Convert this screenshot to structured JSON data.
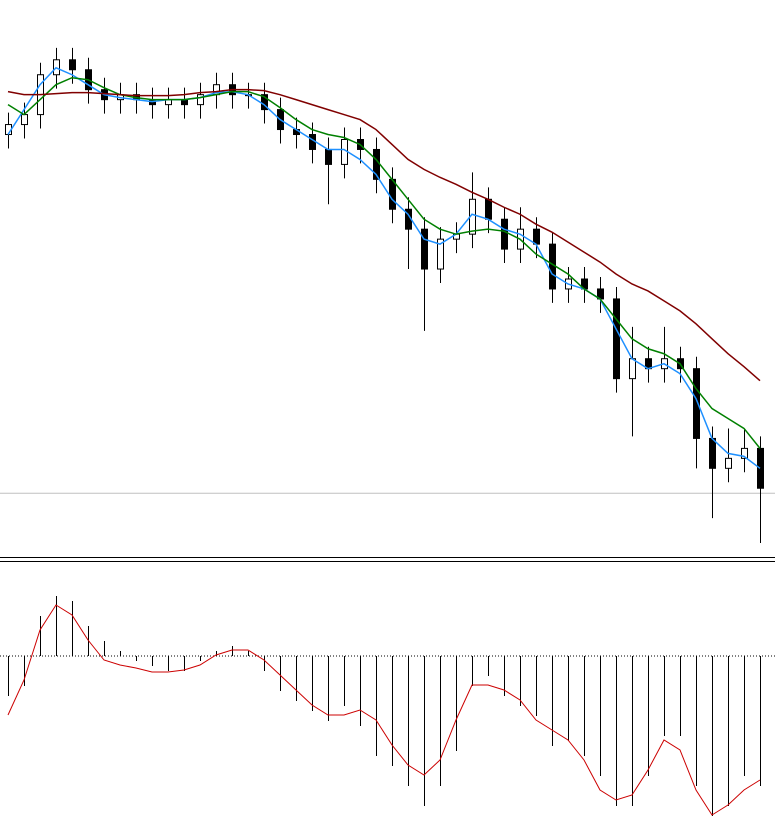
{
  "chart_data": [
    {
      "type": "candlestick",
      "open": [
        425,
        435,
        445,
        485,
        500,
        490,
        470,
        460,
        465,
        460,
        455,
        460,
        455,
        465,
        475,
        465,
        465,
        450,
        430,
        425,
        410,
        395,
        420,
        410,
        380,
        350,
        330,
        290,
        320,
        325,
        360,
        340,
        310,
        330,
        315,
        270,
        280,
        270,
        260,
        180,
        200,
        190,
        200,
        190,
        120,
        90,
        100,
        110
      ],
      "high": [
        447,
        457,
        497,
        512,
        512,
        502,
        482,
        477,
        477,
        472,
        472,
        472,
        477,
        487,
        487,
        477,
        477,
        462,
        442,
        437,
        422,
        432,
        432,
        422,
        392,
        362,
        342,
        332,
        337,
        387,
        372,
        352,
        352,
        342,
        327,
        292,
        292,
        282,
        272,
        232,
        212,
        232,
        212,
        202,
        132,
        130,
        130,
        122
      ],
      "low": [
        411,
        421,
        431,
        471,
        476,
        456,
        446,
        446,
        446,
        441,
        441,
        441,
        441,
        451,
        451,
        451,
        436,
        416,
        411,
        396,
        355,
        381,
        396,
        366,
        336,
        290,
        228,
        276,
        306,
        311,
        326,
        296,
        296,
        301,
        256,
        256,
        256,
        246,
        166,
        122,
        176,
        176,
        176,
        90,
        40,
        76,
        86,
        15
      ],
      "close": [
        435,
        445,
        485,
        500,
        490,
        470,
        460,
        465,
        460,
        455,
        460,
        455,
        465,
        475,
        465,
        465,
        450,
        430,
        425,
        410,
        395,
        420,
        410,
        380,
        350,
        330,
        290,
        320,
        325,
        360,
        340,
        310,
        330,
        315,
        270,
        280,
        270,
        260,
        180,
        200,
        190,
        200,
        190,
        120,
        90,
        100,
        110,
        70
      ],
      "up_color": "#ffffff",
      "down_color": "#000000",
      "overlays": [
        {
          "color": "#1e90ff",
          "values": [
            425,
            450,
            475,
            492,
            485,
            475,
            465,
            462,
            460,
            458,
            460,
            460,
            462,
            467,
            468,
            465,
            455,
            440,
            430,
            420,
            410,
            410,
            400,
            385,
            360,
            345,
            320,
            315,
            325,
            345,
            340,
            330,
            325,
            315,
            285,
            275,
            270,
            260,
            230,
            200,
            190,
            195,
            185,
            160,
            120,
            105,
            102,
            90
          ]
        },
        {
          "color": "#008000",
          "values": [
            455,
            445,
            460,
            475,
            482,
            480,
            472,
            465,
            462,
            460,
            460,
            460,
            462,
            465,
            468,
            468,
            463,
            452,
            440,
            430,
            425,
            422,
            415,
            400,
            380,
            360,
            340,
            330,
            325,
            328,
            330,
            328,
            320,
            305,
            295,
            285,
            270,
            260,
            240,
            220,
            210,
            205,
            195,
            170,
            150,
            140,
            130,
            110
          ]
        },
        {
          "color": "#800000",
          "values": [
            468,
            465,
            465,
            466,
            467,
            467,
            466,
            465,
            464,
            464,
            464,
            465,
            467,
            468,
            470,
            470,
            469,
            465,
            460,
            455,
            450,
            445,
            440,
            430,
            415,
            400,
            390,
            382,
            375,
            367,
            360,
            352,
            345,
            335,
            327,
            317,
            307,
            297,
            285,
            275,
            268,
            258,
            248,
            235,
            220,
            205,
            192,
            178
          ]
        }
      ],
      "hline": 65,
      "hline_color": "#c0c0c0",
      "ylim": [
        0,
        560
      ]
    },
    {
      "type": "macd",
      "histogram": {
        "color": "#000000",
        "values": [
          -40,
          -30,
          40,
          60,
          55,
          30,
          15,
          5,
          -5,
          -10,
          -15,
          -15,
          -5,
          5,
          10,
          5,
          -15,
          -35,
          -45,
          -55,
          -65,
          -50,
          -70,
          -100,
          -110,
          -130,
          -150,
          -130,
          -95,
          -30,
          -20,
          -40,
          -50,
          -60,
          -90,
          -85,
          -100,
          -120,
          -150,
          -150,
          -120,
          -80,
          -80,
          -130,
          -160,
          -150,
          -120,
          -130
        ]
      },
      "signal": {
        "color": "#cc0000",
        "values": [
          -59,
          -24,
          26,
          51,
          41,
          16,
          -4,
          -9,
          -12,
          -16,
          -16,
          -14,
          -9,
          1,
          6,
          6,
          -4,
          -19,
          -34,
          -49,
          -59,
          -59,
          -54,
          -64,
          -89,
          -109,
          -119,
          -104,
          -64,
          -29,
          -29,
          -34,
          -44,
          -64,
          -74,
          -84,
          -104,
          -134,
          -144,
          -139,
          -114,
          -84,
          -94,
          -134,
          -159,
          -149,
          -134,
          -124
        ]
      },
      "ylim": [
        -184,
        94
      ]
    }
  ]
}
